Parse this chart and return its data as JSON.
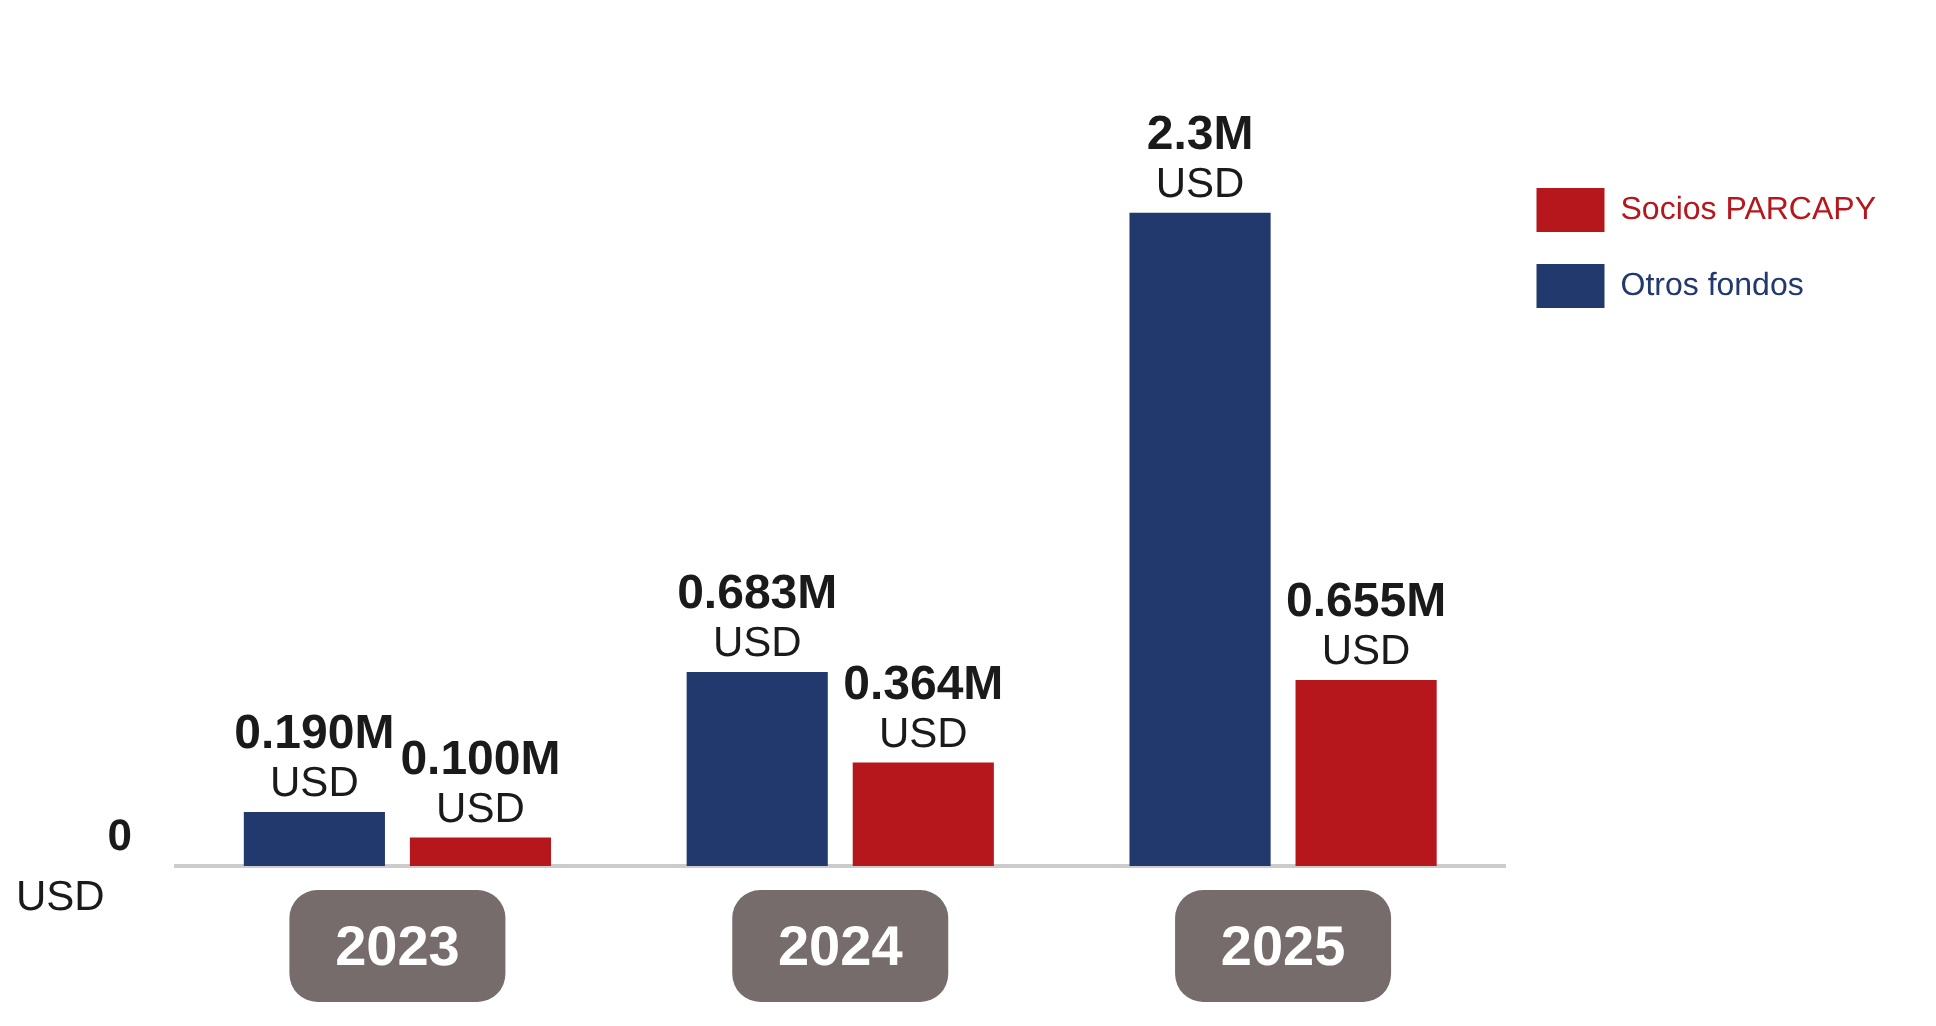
{
  "chart_data": {
    "type": "bar",
    "categories": [
      "2023",
      "2024",
      "2025"
    ],
    "series": [
      {
        "name": "Otros fondos",
        "color": "#22396e",
        "values": [
          0.19,
          0.683,
          2.3
        ],
        "value_labels": [
          "0.190M USD",
          "0.683M USD",
          "2.3M USD"
        ]
      },
      {
        "name": "Socios PARCAPY",
        "color": "#b5171c",
        "values": [
          0.1,
          0.364,
          0.655
        ],
        "value_labels": [
          "0.100M USD",
          "0.364M USD",
          "0.655M USD"
        ]
      }
    ],
    "annotations": [
      "0 USD"
    ],
    "grid": false,
    "legend": "top right"
  }
}
